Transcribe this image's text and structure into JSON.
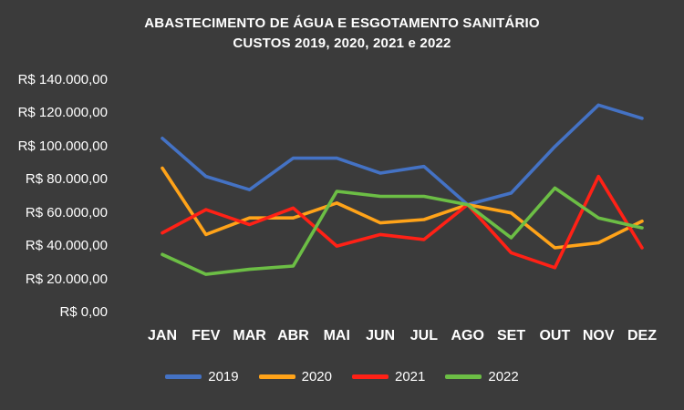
{
  "title_line1": "ABASTECIMENTO DE ÁGUA E ESGOTAMENTO SANITÁRIO",
  "title_line2": "CUSTOS 2019, 2020, 2021 e 2022",
  "background_color": "#3B3B3B",
  "text_color": "#FFFFFF",
  "chart_data": {
    "type": "line",
    "title": "ABASTECIMENTO DE ÁGUA E ESGOTAMENTO SANITÁRIO CUSTOS 2019, 2020, 2021 e 2022",
    "xlabel": "",
    "ylabel": "",
    "ylim": [
      0,
      140000
    ],
    "grid": false,
    "legend_position": "bottom",
    "categories": [
      "JAN",
      "FEV",
      "MAR",
      "ABR",
      "MAI",
      "JUN",
      "JUL",
      "AGO",
      "SET",
      "OUT",
      "NOV",
      "DEZ"
    ],
    "y_ticks": [
      {
        "label": "R$ 140.000,00",
        "value": 140000
      },
      {
        "label": "R$ 120.000,00",
        "value": 120000
      },
      {
        "label": "R$ 100.000,00",
        "value": 100000
      },
      {
        "label": "R$ 80.000,00",
        "value": 80000
      },
      {
        "label": "R$ 60.000,00",
        "value": 60000
      },
      {
        "label": "R$ 40.000,00",
        "value": 40000
      },
      {
        "label": "R$ 20.000,00",
        "value": 20000
      },
      {
        "label": "R$ 0,00",
        "value": 0
      }
    ],
    "series": [
      {
        "name": "2019",
        "color": "#4472C4",
        "values": [
          105000,
          82000,
          74000,
          93000,
          93000,
          84000,
          88000,
          65000,
          72000,
          100000,
          125000,
          117000
        ]
      },
      {
        "name": "2020",
        "color": "#FFA319",
        "values": [
          87000,
          47000,
          57000,
          57000,
          66000,
          54000,
          56000,
          65000,
          60000,
          39000,
          42000,
          55000
        ]
      },
      {
        "name": "2021",
        "color": "#FF2116",
        "values": [
          48000,
          62000,
          53000,
          63000,
          40000,
          47000,
          44000,
          65000,
          36000,
          27000,
          82000,
          39000
        ]
      },
      {
        "name": "2022",
        "color": "#6CBE45",
        "values": [
          35000,
          23000,
          26000,
          28000,
          73000,
          70000,
          70000,
          65000,
          45000,
          75000,
          57000,
          51000
        ]
      }
    ]
  }
}
